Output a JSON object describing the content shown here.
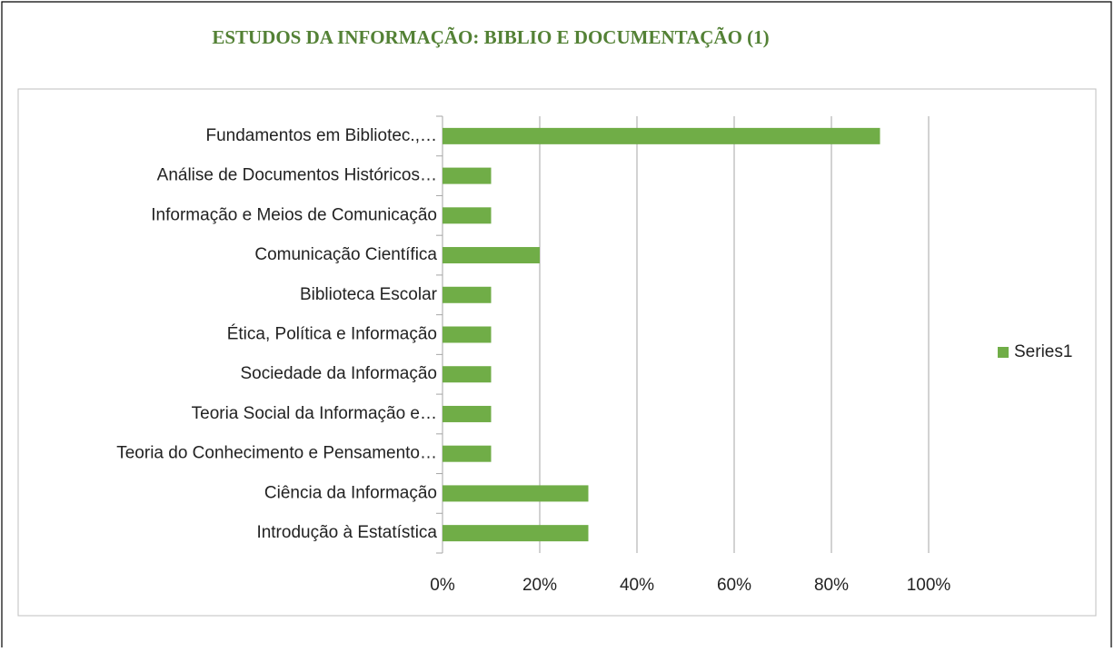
{
  "chart_data": {
    "type": "bar",
    "orientation": "horizontal",
    "title": "ESTUDOS DA INFORMAÇÃO: BIBLIO E DOCUMENTAÇÃO (1)",
    "categories": [
      "Fundamentos em Bibliotec.,…",
      "Análise de Documentos Históricos…",
      "Informação e Meios de Comunicação",
      "Comunicação Científica",
      "Biblioteca Escolar",
      "Ética, Política e Informação",
      "Sociedade da Informação",
      "Teoria Social da Informação e…",
      "Teoria do Conhecimento e Pensamento…",
      "Ciência da Informação",
      "Introdução à Estatística"
    ],
    "series": [
      {
        "name": "Series1",
        "color": "#70ad47",
        "values": [
          90,
          10,
          10,
          20,
          10,
          10,
          10,
          10,
          10,
          30,
          30
        ]
      }
    ],
    "xlim": [
      0,
      100
    ],
    "xticks": [
      {
        "value": 0,
        "label": "0%"
      },
      {
        "value": 20,
        "label": "20%"
      },
      {
        "value": 40,
        "label": "40%"
      },
      {
        "value": 60,
        "label": "60%"
      },
      {
        "value": 80,
        "label": "80%"
      },
      {
        "value": 100,
        "label": "100%"
      }
    ],
    "grid": true,
    "legend": "right"
  }
}
